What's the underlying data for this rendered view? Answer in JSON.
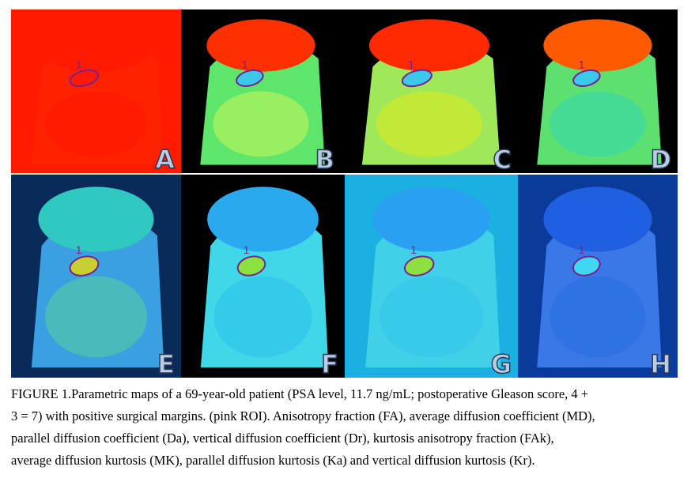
{
  "figure": {
    "panels": [
      {
        "label": "A",
        "roi": "1"
      },
      {
        "label": "B",
        "roi": "1"
      },
      {
        "label": "C",
        "roi": "1"
      },
      {
        "label": "D",
        "roi": "1"
      },
      {
        "label": "E",
        "roi": "1"
      },
      {
        "label": "F",
        "roi": "1"
      },
      {
        "label": "G",
        "roi": "1"
      },
      {
        "label": "H",
        "roi": "1"
      }
    ],
    "caption": {
      "lines": [
        "FIGURE 1.Parametric maps of a 69-year-old patient (PSA level, 11.7 ng/mL; postoperative Gleason score, 4 +",
        "3 = 7) with positive surgical margins. (pink ROI). Anisotropy fraction (FA), average diffusion coefficient (MD),",
        "parallel diffusion coefficient (Da), vertical diffusion coefficient (Dr), kurtosis anisotropy fraction (FAk),",
        "average diffusion kurtosis (MK), parallel diffusion kurtosis (Ka) and vertical diffusion kurtosis (Kr)."
      ]
    }
  }
}
